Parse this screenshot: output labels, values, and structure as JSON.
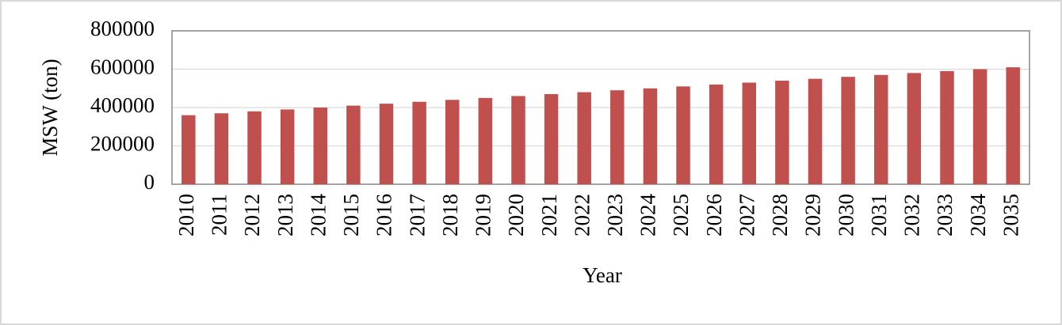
{
  "chart_data": {
    "type": "bar",
    "x_label": "Year",
    "y_label": "MSW (ton)",
    "categories": [
      "2010",
      "2011",
      "2012",
      "2013",
      "2014",
      "2015",
      "2016",
      "2017",
      "2018",
      "2019",
      "2020",
      "2021",
      "2022",
      "2023",
      "2024",
      "2025",
      "2026",
      "2027",
      "2028",
      "2029",
      "2030",
      "2031",
      "2032",
      "2033",
      "2034",
      "2035"
    ],
    "values": [
      360000,
      370000,
      380000,
      390000,
      400000,
      410000,
      420000,
      430000,
      440000,
      450000,
      460000,
      470000,
      480000,
      490000,
      500000,
      510000,
      520000,
      530000,
      540000,
      550000,
      560000,
      570000,
      580000,
      590000,
      600000,
      610000
    ],
    "color": "#c0504d",
    "ylim": [
      0,
      800000
    ],
    "yticks": [
      0,
      200000,
      400000,
      600000,
      800000
    ],
    "grid": true
  }
}
